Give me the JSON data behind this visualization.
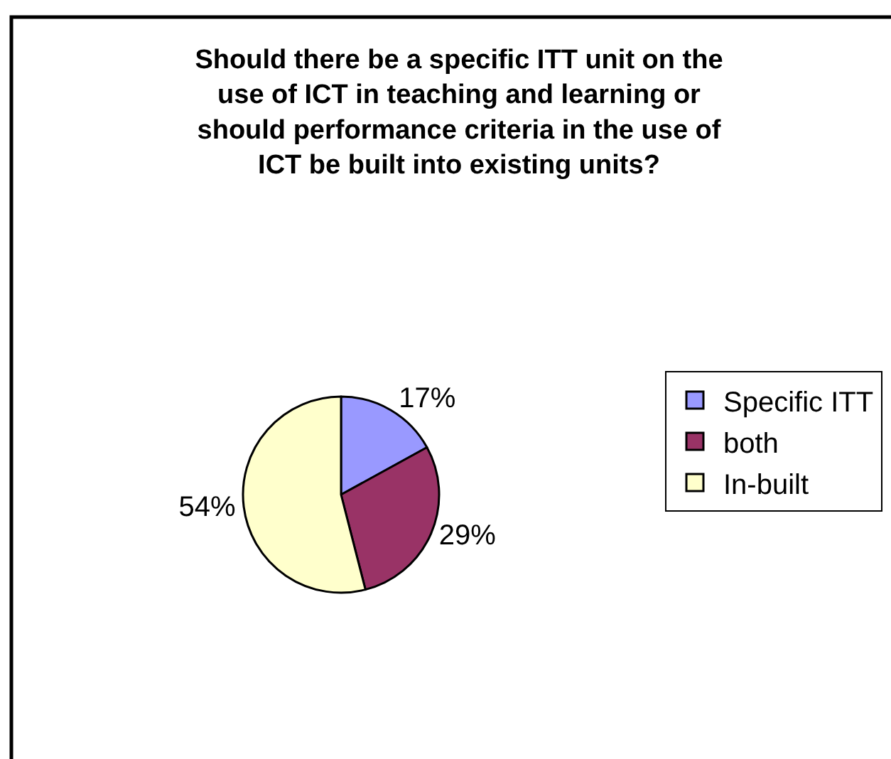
{
  "chart_data": {
    "type": "pie",
    "title": "Should there be a specific ITT unit on the use of ICT in teaching and learning or should performance criteria in the use of ICT be built into existing units?",
    "categories": [
      "Specific ITT",
      "both",
      "In-built"
    ],
    "values": [
      17,
      29,
      54
    ],
    "colors": [
      "#9999ff",
      "#993366",
      "#ffffcc"
    ],
    "value_labels": [
      "17%",
      "29%",
      "54%"
    ],
    "legend": "right"
  }
}
